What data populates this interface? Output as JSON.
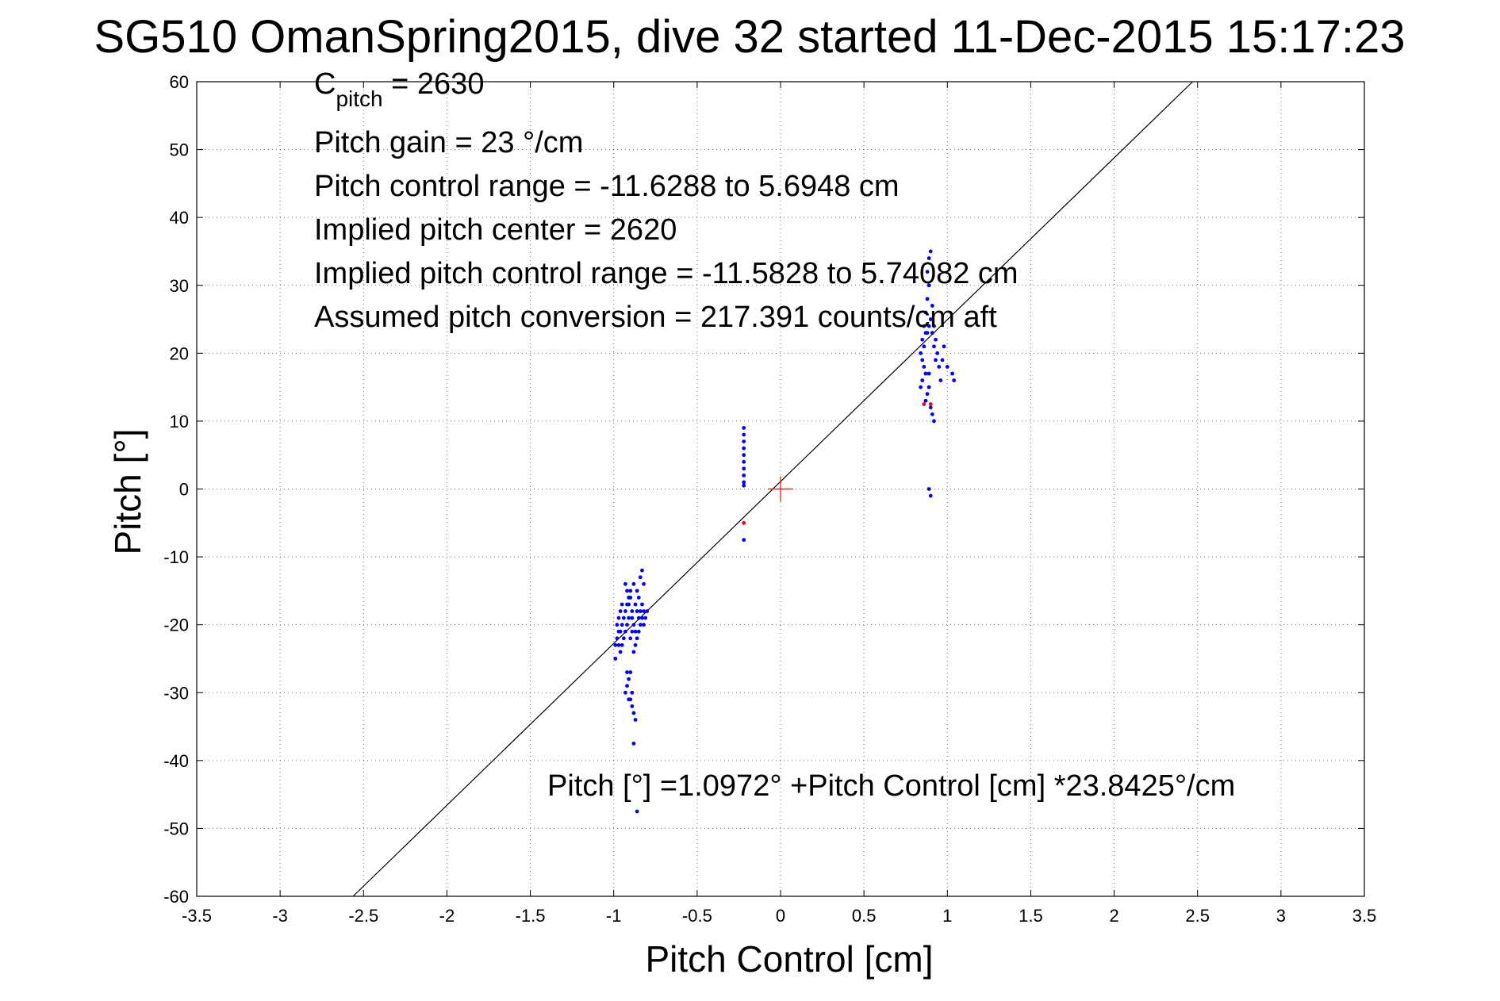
{
  "chart_data": {
    "type": "scatter",
    "title": "SG510 OmanSpring2015, dive 32 started 11-Dec-2015 15:17:23",
    "xlabel": "Pitch Control [cm]",
    "ylabel": "Pitch [°]",
    "xlim": [
      -3.5,
      3.5
    ],
    "ylim": [
      -60,
      60
    ],
    "xticks": [
      "-3.5",
      "-3",
      "-2.5",
      "-2",
      "-1.5",
      "-1",
      "-0.5",
      "0",
      "0.5",
      "1",
      "1.5",
      "2",
      "2.5",
      "3",
      "3.5"
    ],
    "yticks": [
      "60",
      "50",
      "40",
      "30",
      "20",
      "10",
      "0",
      "-10",
      "-20",
      "-30",
      "-40",
      "-50",
      "-60"
    ],
    "grid": true,
    "annotations": {
      "c_pitch_main": "C",
      "c_pitch_sub": "pitch",
      "c_pitch_value": " = 2630",
      "pitch_gain": "Pitch gain = 23 °/cm",
      "control_range": "Pitch control range = -11.6288 to 5.6948 cm",
      "implied_center": "Implied pitch center = 2620",
      "implied_range": "Implied pitch control range = -11.5828 to 5.74082 cm",
      "conversion": "Assumed pitch conversion = 217.391 counts/cm aft",
      "fit_equation": "Pitch [°] =1.0972° +Pitch Control [cm] *23.8425°/cm"
    },
    "fit_line": {
      "intercept": 1.0972,
      "slope": 23.8425
    },
    "center_marker": {
      "x": 0,
      "y": 0,
      "color": "#ff0000"
    },
    "series": [
      {
        "color": "#0000ff",
        "points": [
          [
            -0.88,
            -14
          ],
          [
            -0.86,
            -15
          ],
          [
            -0.85,
            -16
          ],
          [
            -0.84,
            -13
          ],
          [
            -0.83,
            -12
          ],
          [
            -0.82,
            -14
          ],
          [
            -0.87,
            -17
          ],
          [
            -0.89,
            -18
          ],
          [
            -0.9,
            -16
          ],
          [
            -0.91,
            -19
          ],
          [
            -0.92,
            -20
          ],
          [
            -0.93,
            -21
          ],
          [
            -0.94,
            -22
          ],
          [
            -0.95,
            -23
          ],
          [
            -0.96,
            -24
          ],
          [
            -0.97,
            -19
          ],
          [
            -0.96,
            -18
          ],
          [
            -0.95,
            -17
          ],
          [
            -0.93,
            -18
          ],
          [
            -0.92,
            -17
          ],
          [
            -0.91,
            -16
          ],
          [
            -0.9,
            -15
          ],
          [
            -0.89,
            -19
          ],
          [
            -0.88,
            -20
          ],
          [
            -0.87,
            -21
          ],
          [
            -0.86,
            -18
          ],
          [
            -0.85,
            -19
          ],
          [
            -0.84,
            -20
          ],
          [
            -0.83,
            -17
          ],
          [
            -0.82,
            -18
          ],
          [
            -0.86,
            -22
          ],
          [
            -0.87,
            -23
          ],
          [
            -0.88,
            -24
          ],
          [
            -0.89,
            -21
          ],
          [
            -0.9,
            -22
          ],
          [
            -0.91,
            -17
          ],
          [
            -0.92,
            -15
          ],
          [
            -0.85,
            -21
          ],
          [
            -0.84,
            -18
          ],
          [
            -0.83,
            -19
          ],
          [
            -0.82,
            -20
          ],
          [
            -0.81,
            -19
          ],
          [
            -0.8,
            -18
          ],
          [
            -0.99,
            -25
          ],
          [
            -0.98,
            -22
          ],
          [
            -0.97,
            -23
          ],
          [
            -0.96,
            -21
          ],
          [
            -0.95,
            -20
          ],
          [
            -0.94,
            -19
          ],
          [
            -0.93,
            -14
          ],
          [
            -0.98,
            -20
          ],
          [
            -0.97,
            -21
          ],
          [
            -0.99,
            -23
          ],
          [
            -0.9,
            -27
          ],
          [
            -0.91,
            -28
          ],
          [
            -0.92,
            -29
          ],
          [
            -0.93,
            -30
          ],
          [
            -0.9,
            -31
          ],
          [
            -0.89,
            -32
          ],
          [
            -0.88,
            -33
          ],
          [
            -0.87,
            -34
          ],
          [
            -0.89,
            -30
          ],
          [
            -0.92,
            -27
          ],
          [
            -0.91,
            -31
          ],
          [
            -0.88,
            -37.5
          ],
          [
            -0.86,
            -47.5
          ],
          [
            0.84,
            20
          ],
          [
            0.85,
            22
          ],
          [
            0.86,
            24
          ],
          [
            0.87,
            26
          ],
          [
            0.88,
            28
          ],
          [
            0.89,
            30
          ],
          [
            0.88,
            32
          ],
          [
            0.87,
            23
          ],
          [
            0.86,
            21
          ],
          [
            0.85,
            19
          ],
          [
            0.9,
            25
          ],
          [
            0.91,
            27
          ],
          [
            0.92,
            24
          ],
          [
            0.93,
            22
          ],
          [
            0.94,
            20
          ],
          [
            0.95,
            18
          ],
          [
            0.96,
            16
          ],
          [
            0.97,
            19
          ],
          [
            0.98,
            21
          ],
          [
            1.0,
            18
          ],
          [
            1.03,
            17
          ],
          [
            1.04,
            16
          ],
          [
            0.89,
            15
          ],
          [
            0.88,
            14
          ],
          [
            0.87,
            13
          ],
          [
            0.9,
            12
          ],
          [
            0.91,
            11
          ],
          [
            0.92,
            10
          ],
          [
            0.89,
            17
          ],
          [
            0.93,
            19
          ],
          [
            0.86,
            18
          ],
          [
            0.87,
            17
          ],
          [
            0.85,
            16
          ],
          [
            0.84,
            15
          ],
          [
            0.89,
            34
          ],
          [
            0.9,
            35
          ],
          [
            0.88,
            23
          ],
          [
            0.89,
            24
          ],
          [
            0.91,
            23
          ],
          [
            0.92,
            21
          ],
          [
            0.89,
            0
          ],
          [
            0.9,
            -1
          ],
          [
            -0.22,
            9
          ],
          [
            -0.22,
            8
          ],
          [
            -0.22,
            7
          ],
          [
            -0.22,
            6
          ],
          [
            -0.22,
            5
          ],
          [
            -0.22,
            4
          ],
          [
            -0.22,
            3
          ],
          [
            -0.22,
            2
          ],
          [
            -0.22,
            1
          ],
          [
            -0.22,
            0.5
          ],
          [
            -0.22,
            -7.5
          ]
        ]
      },
      {
        "color": "#ff0000",
        "points": [
          [
            -0.22,
            -5
          ],
          [
            0.86,
            12.5
          ],
          [
            0.9,
            12.5
          ]
        ]
      }
    ]
  }
}
